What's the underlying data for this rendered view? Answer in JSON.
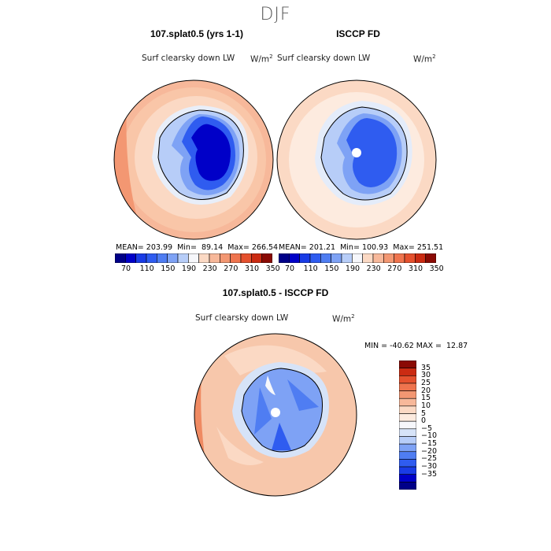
{
  "title": "DJF",
  "panels": [
    {
      "title": "107.splat0.5 (yrs 1-1)",
      "variable": "Surf clearsky down LW",
      "units_base": "W/m",
      "units_exp": "2",
      "stats": {
        "mean_label": "MEAN=",
        "mean": "203.99",
        "min_label": "Min=",
        "min": "89.14",
        "max_label": "Max=",
        "max": "266.54"
      }
    },
    {
      "title": "ISCCP FD",
      "variable": "Surf clearsky down LW",
      "units_base": "W/m",
      "units_exp": "2",
      "stats": {
        "mean_label": "MEAN=",
        "mean": "201.21",
        "min_label": "Min=",
        "min": "100.93",
        "max_label": "Max=",
        "max": "251.51"
      }
    },
    {
      "title": "107.splat0.5 - ISCCP FD",
      "variable": "Surf clearsky down LW",
      "units_base": "W/m",
      "units_exp": "2",
      "stats": {
        "min_label": "MIN =",
        "min": "-40.62",
        "max_label": "MAX =",
        "max": "12.87"
      }
    }
  ],
  "abs_colorbar": {
    "colors": [
      "#000088",
      "#0000c8",
      "#1a3ce6",
      "#2f5cf0",
      "#4f7df2",
      "#7ea2f5",
      "#b7cdf8",
      "#f6f7fb",
      "#fbd9c4",
      "#f7b89a",
      "#f39772",
      "#ef744e",
      "#e5512e",
      "#cb2b12",
      "#8a0a04"
    ],
    "tick_labels": [
      "70",
      "110",
      "150",
      "190",
      "230",
      "270",
      "310",
      "350"
    ]
  },
  "diff_colorbar": {
    "colors": [
      "#8a0a04",
      "#cb2b12",
      "#e5512e",
      "#ef744e",
      "#f39772",
      "#f7b89a",
      "#fbd9c4",
      "#fdebdf",
      "#f6f7fb",
      "#d6e3f8",
      "#b7cdf8",
      "#7ea2f5",
      "#4f7df2",
      "#2f5cf0",
      "#1a3ce6",
      "#0000c8",
      "#000088"
    ],
    "tick_labels": [
      "35",
      "30",
      "25",
      "20",
      "15",
      "10",
      "5",
      "0",
      "−5",
      "−10",
      "−15",
      "−20",
      "−25",
      "−30",
      "−35"
    ]
  }
}
